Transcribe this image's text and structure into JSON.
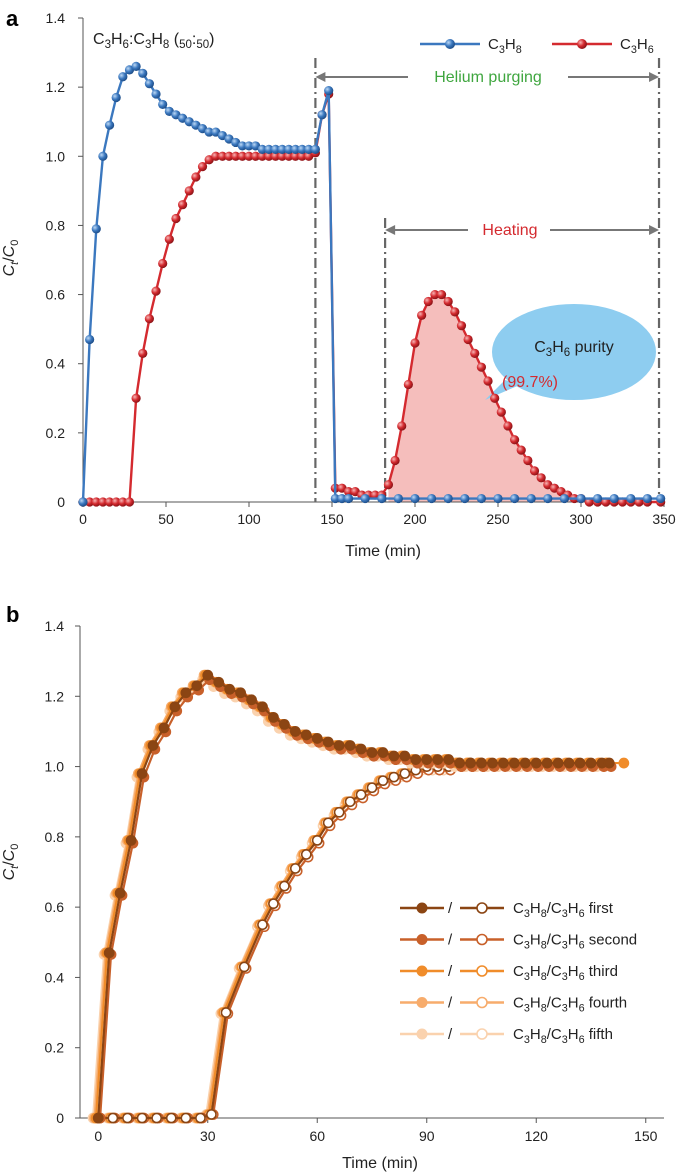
{
  "chart_data": [
    {
      "panel": "a",
      "type": "line",
      "title": "C3H6:C3H8 (50:50)",
      "xlabel": "Time (min)",
      "ylabel": "Ct/C0",
      "xlim": [
        0,
        350
      ],
      "ylim": [
        0,
        1.4
      ],
      "xticks": [
        "0",
        "50",
        "100",
        "150",
        "200",
        "250",
        "300",
        "350"
      ],
      "yticks": [
        "0",
        "0.2",
        "0.4",
        "0.6",
        "0.8",
        "1.0",
        "1.2",
        "1.4"
      ],
      "series": [
        {
          "name": "C3H8",
          "color": "#3b78bf",
          "x": [
            0,
            4,
            8,
            12,
            16,
            20,
            24,
            28,
            32,
            36,
            40,
            44,
            48,
            52,
            56,
            60,
            64,
            68,
            72,
            76,
            80,
            84,
            88,
            92,
            96,
            100,
            104,
            108,
            112,
            116,
            120,
            124,
            128,
            132,
            136,
            140,
            144,
            148,
            152,
            156,
            160,
            170,
            180,
            190,
            200,
            210,
            220,
            230,
            240,
            250,
            260,
            270,
            280,
            290,
            300,
            310,
            320,
            330,
            340,
            348
          ],
          "y": [
            0,
            0.47,
            0.79,
            1.0,
            1.09,
            1.17,
            1.23,
            1.25,
            1.26,
            1.24,
            1.21,
            1.18,
            1.15,
            1.13,
            1.12,
            1.11,
            1.1,
            1.09,
            1.08,
            1.07,
            1.07,
            1.06,
            1.05,
            1.04,
            1.03,
            1.03,
            1.03,
            1.02,
            1.02,
            1.02,
            1.02,
            1.02,
            1.02,
            1.02,
            1.02,
            1.02,
            1.12,
            1.19,
            0.01,
            0.01,
            0.01,
            0.01,
            0.01,
            0.01,
            0.01,
            0.01,
            0.01,
            0.01,
            0.01,
            0.01,
            0.01,
            0.01,
            0.01,
            0.01,
            0.01,
            0.01,
            0.01,
            0.01,
            0.01,
            0.01
          ]
        },
        {
          "name": "C3H6",
          "color": "#d42a2f",
          "x": [
            0,
            4,
            8,
            12,
            16,
            20,
            24,
            28,
            32,
            36,
            40,
            44,
            48,
            52,
            56,
            60,
            64,
            68,
            72,
            76,
            80,
            84,
            88,
            92,
            96,
            100,
            104,
            108,
            112,
            116,
            120,
            124,
            128,
            132,
            136,
            140,
            144,
            148,
            152,
            156,
            160,
            164,
            168,
            172,
            176,
            180,
            184,
            188,
            192,
            196,
            200,
            204,
            208,
            212,
            216,
            220,
            224,
            228,
            232,
            236,
            240,
            244,
            248,
            252,
            256,
            260,
            264,
            268,
            272,
            276,
            280,
            284,
            288,
            292,
            296,
            300,
            305,
            310,
            315,
            320,
            325,
            330,
            335,
            340,
            348
          ],
          "y": [
            0,
            0,
            0,
            0,
            0,
            0,
            0,
            0,
            0.3,
            0.43,
            0.53,
            0.61,
            0.69,
            0.76,
            0.82,
            0.86,
            0.9,
            0.94,
            0.97,
            0.99,
            1.0,
            1.0,
            1.0,
            1.0,
            1.0,
            1.0,
            1.0,
            1.0,
            1.0,
            1.0,
            1.0,
            1.0,
            1.0,
            1.0,
            1.0,
            1.01,
            1.12,
            1.18,
            0.04,
            0.04,
            0.03,
            0.03,
            0.02,
            0.02,
            0.02,
            0.02,
            0.05,
            0.12,
            0.22,
            0.34,
            0.46,
            0.54,
            0.58,
            0.6,
            0.6,
            0.58,
            0.55,
            0.51,
            0.47,
            0.43,
            0.39,
            0.35,
            0.3,
            0.26,
            0.22,
            0.18,
            0.15,
            0.12,
            0.09,
            0.07,
            0.05,
            0.04,
            0.03,
            0.02,
            0.01,
            0.01,
            0,
            0,
            0,
            0,
            0,
            0,
            0,
            0,
            0
          ]
        }
      ],
      "legend": [
        "C3H8",
        "C3H6"
      ],
      "annotations": {
        "helium": "Helium purging",
        "heating": "Heating",
        "helium_range": [
          140,
          347
        ],
        "heating_range": [
          182,
          347
        ],
        "purity_label": "C3H6 purity",
        "purity_value": "(99.7%)"
      }
    },
    {
      "panel": "b",
      "type": "line",
      "xlabel": "Time (min)",
      "ylabel": "Ct/C0",
      "xlim": [
        -5,
        155
      ],
      "ylim": [
        0,
        1.4
      ],
      "xticks": [
        "0",
        "30",
        "60",
        "90",
        "120",
        "150"
      ],
      "yticks": [
        "0",
        "0.2",
        "0.4",
        "0.6",
        "0.8",
        "1.0",
        "1.2",
        "1.4"
      ],
      "runs": [
        {
          "name": "first",
          "color": "#8b4513",
          "shift": 0,
          "scale": 1.0,
          "end": 140
        },
        {
          "name": "second",
          "color": "#c8602a",
          "shift": 0.5,
          "scale": 0.99,
          "end": 140
        },
        {
          "name": "third",
          "color": "#f08c2a",
          "shift": -0.6,
          "scale": 1.0,
          "end": 144
        },
        {
          "name": "fourth",
          "color": "#f7ac6c",
          "shift": -1.0,
          "scale": 1.0,
          "end": 140
        },
        {
          "name": "fifth",
          "color": "#fad2ae",
          "shift": -1.4,
          "scale": 0.99,
          "end": 140
        }
      ],
      "c3h8_base": {
        "x": [
          0,
          3,
          6,
          9,
          12,
          15,
          18,
          21,
          24,
          27,
          30,
          33,
          36,
          39,
          42,
          45,
          48,
          51,
          54,
          57,
          60,
          63,
          66,
          69,
          72,
          75,
          78,
          81,
          84,
          87,
          90,
          93,
          96,
          99,
          102,
          105,
          108,
          111,
          114,
          117,
          120,
          123,
          126,
          129,
          132,
          135,
          138,
          140
        ],
        "y": [
          0,
          0.47,
          0.64,
          0.79,
          0.98,
          1.06,
          1.11,
          1.17,
          1.21,
          1.23,
          1.26,
          1.24,
          1.22,
          1.21,
          1.19,
          1.17,
          1.14,
          1.12,
          1.1,
          1.09,
          1.08,
          1.07,
          1.06,
          1.06,
          1.05,
          1.04,
          1.04,
          1.03,
          1.03,
          1.02,
          1.02,
          1.02,
          1.02,
          1.01,
          1.01,
          1.01,
          1.01,
          1.01,
          1.01,
          1.01,
          1.01,
          1.01,
          1.01,
          1.01,
          1.01,
          1.01,
          1.01,
          1.01
        ]
      },
      "c3h6_base": {
        "x": [
          0,
          4,
          8,
          12,
          16,
          20,
          24,
          28,
          31,
          35,
          40,
          45,
          48,
          51,
          54,
          57,
          60,
          63,
          66,
          69,
          72,
          75,
          78,
          81,
          84,
          87,
          90,
          93,
          96,
          99,
          102,
          105
        ],
        "y": [
          0,
          0,
          0,
          0,
          0,
          0,
          0,
          0,
          0.01,
          0.3,
          0.43,
          0.55,
          0.61,
          0.66,
          0.71,
          0.75,
          0.79,
          0.84,
          0.87,
          0.9,
          0.92,
          0.94,
          0.96,
          0.97,
          0.98,
          0.99,
          1.0,
          1.0,
          1.0,
          1.01,
          1.01,
          1.01
        ]
      },
      "legend": [
        "C3H8/C3H6 first",
        "C3H8/C3H6 second",
        "C3H8/C3H6 third",
        "C3H8/C3H6 fourth",
        "C3H8/C3H6 fifth"
      ],
      "legend_sep": "/"
    }
  ],
  "ui": {
    "panel_a_label": "a",
    "panel_b_label": "b"
  }
}
